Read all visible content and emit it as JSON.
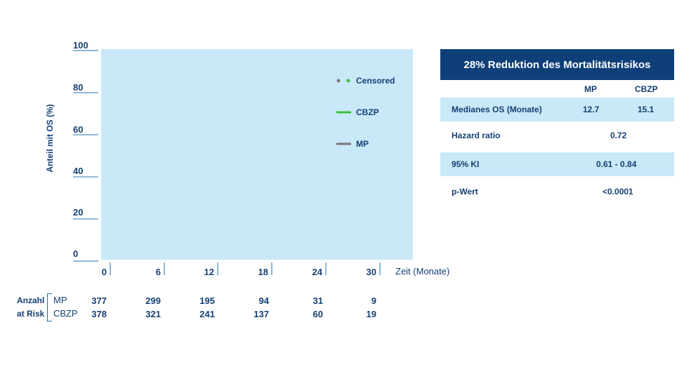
{
  "chart_data": {
    "type": "line",
    "ylabel": "Anteil mit OS (%)",
    "xlabel": "Zeit (Monate)",
    "y_ticks": [
      "0",
      "20",
      "40",
      "60",
      "80",
      "100"
    ],
    "x_ticks": [
      "0",
      "6",
      "12",
      "18",
      "24",
      "30"
    ],
    "ylim": [
      0,
      100
    ],
    "xlim": [
      0,
      33
    ],
    "grid": false,
    "legend_position": "top-right",
    "legend": {
      "censored": "Censored",
      "cbzp": "CBZP",
      "mp": "MP"
    },
    "series": [
      {
        "name": "CBZP",
        "color": "#3cbf3c",
        "values": []
      },
      {
        "name": "MP",
        "color": "#777777",
        "values": []
      }
    ],
    "colors": {
      "plot_bg": "#c9e8f8",
      "axis": "#1f6fb2",
      "text": "#143f72"
    }
  },
  "risk_table": {
    "title_line1": "Anzahl",
    "title_line2": "at Risk",
    "rows": [
      {
        "label": "MP",
        "values": [
          "377",
          "299",
          "195",
          "94",
          "31",
          "9"
        ]
      },
      {
        "label": "CBZP",
        "values": [
          "378",
          "321",
          "241",
          "137",
          "60",
          "19"
        ]
      }
    ]
  },
  "summary_panel": {
    "title": "28% Reduktion des Mortalitätsrisikos",
    "header": {
      "col1": "MP",
      "col2": "CBZP"
    },
    "rows": {
      "median": {
        "label": "Medianes OS (Monate)",
        "mp": "12.7",
        "cbzp": "15.1"
      },
      "hr": {
        "label": "Hazard ratio",
        "value": "0.72"
      },
      "ci": {
        "label": "95% KI",
        "value": "0.61 - 0.84"
      },
      "p": {
        "label": "p-Wert",
        "value": "<0.0001"
      }
    },
    "colors": {
      "title_bg": "#0e3f78",
      "row_bg": "#c9e8f8"
    }
  }
}
